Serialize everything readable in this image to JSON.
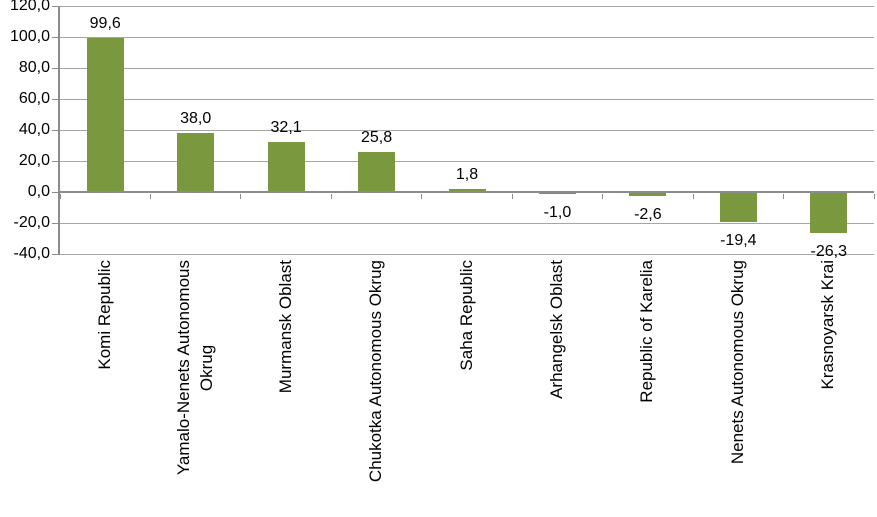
{
  "chart_data": {
    "type": "bar",
    "title": "",
    "xlabel": "",
    "ylabel": "",
    "categories": [
      "Komi Republic",
      "Yamalo-Nenets Autonomous\nOkrug",
      "Murmansk Oblast",
      "Chukotka Autonomous Okrug",
      "Saha Republic",
      "Arhangelsk Oblast",
      "Republic of Karelia",
      "Nenets Autonomous Okrug",
      "Krasnoyarsk Krai"
    ],
    "values": [
      99.6,
      38.0,
      32.1,
      25.8,
      1.8,
      -1.0,
      -2.6,
      -19.4,
      -26.3
    ],
    "value_labels": [
      "99,6",
      "38,0",
      "32,1",
      "25,8",
      "1,8",
      "-1,0",
      "-2,6",
      "-19,4",
      "-26,3"
    ],
    "ylim": [
      -40,
      120
    ],
    "y_ticks": [
      120,
      100,
      80,
      60,
      40,
      20,
      0,
      -20,
      -40
    ],
    "y_tick_labels": [
      "120,0",
      "100,0",
      "80,0",
      "60,0",
      "40,0",
      "20,0",
      "0,0",
      "-20,0",
      "-40,0"
    ],
    "decimal_separator": ",",
    "grid": "horizontal",
    "legend_position": "none",
    "bar_orientation": "vertical",
    "colors": {
      "bar": "#7A993E",
      "gridline": "#A6A6A6",
      "axis": "#8C8C8C",
      "text": "#000000",
      "background": "#FFFFFF"
    }
  }
}
